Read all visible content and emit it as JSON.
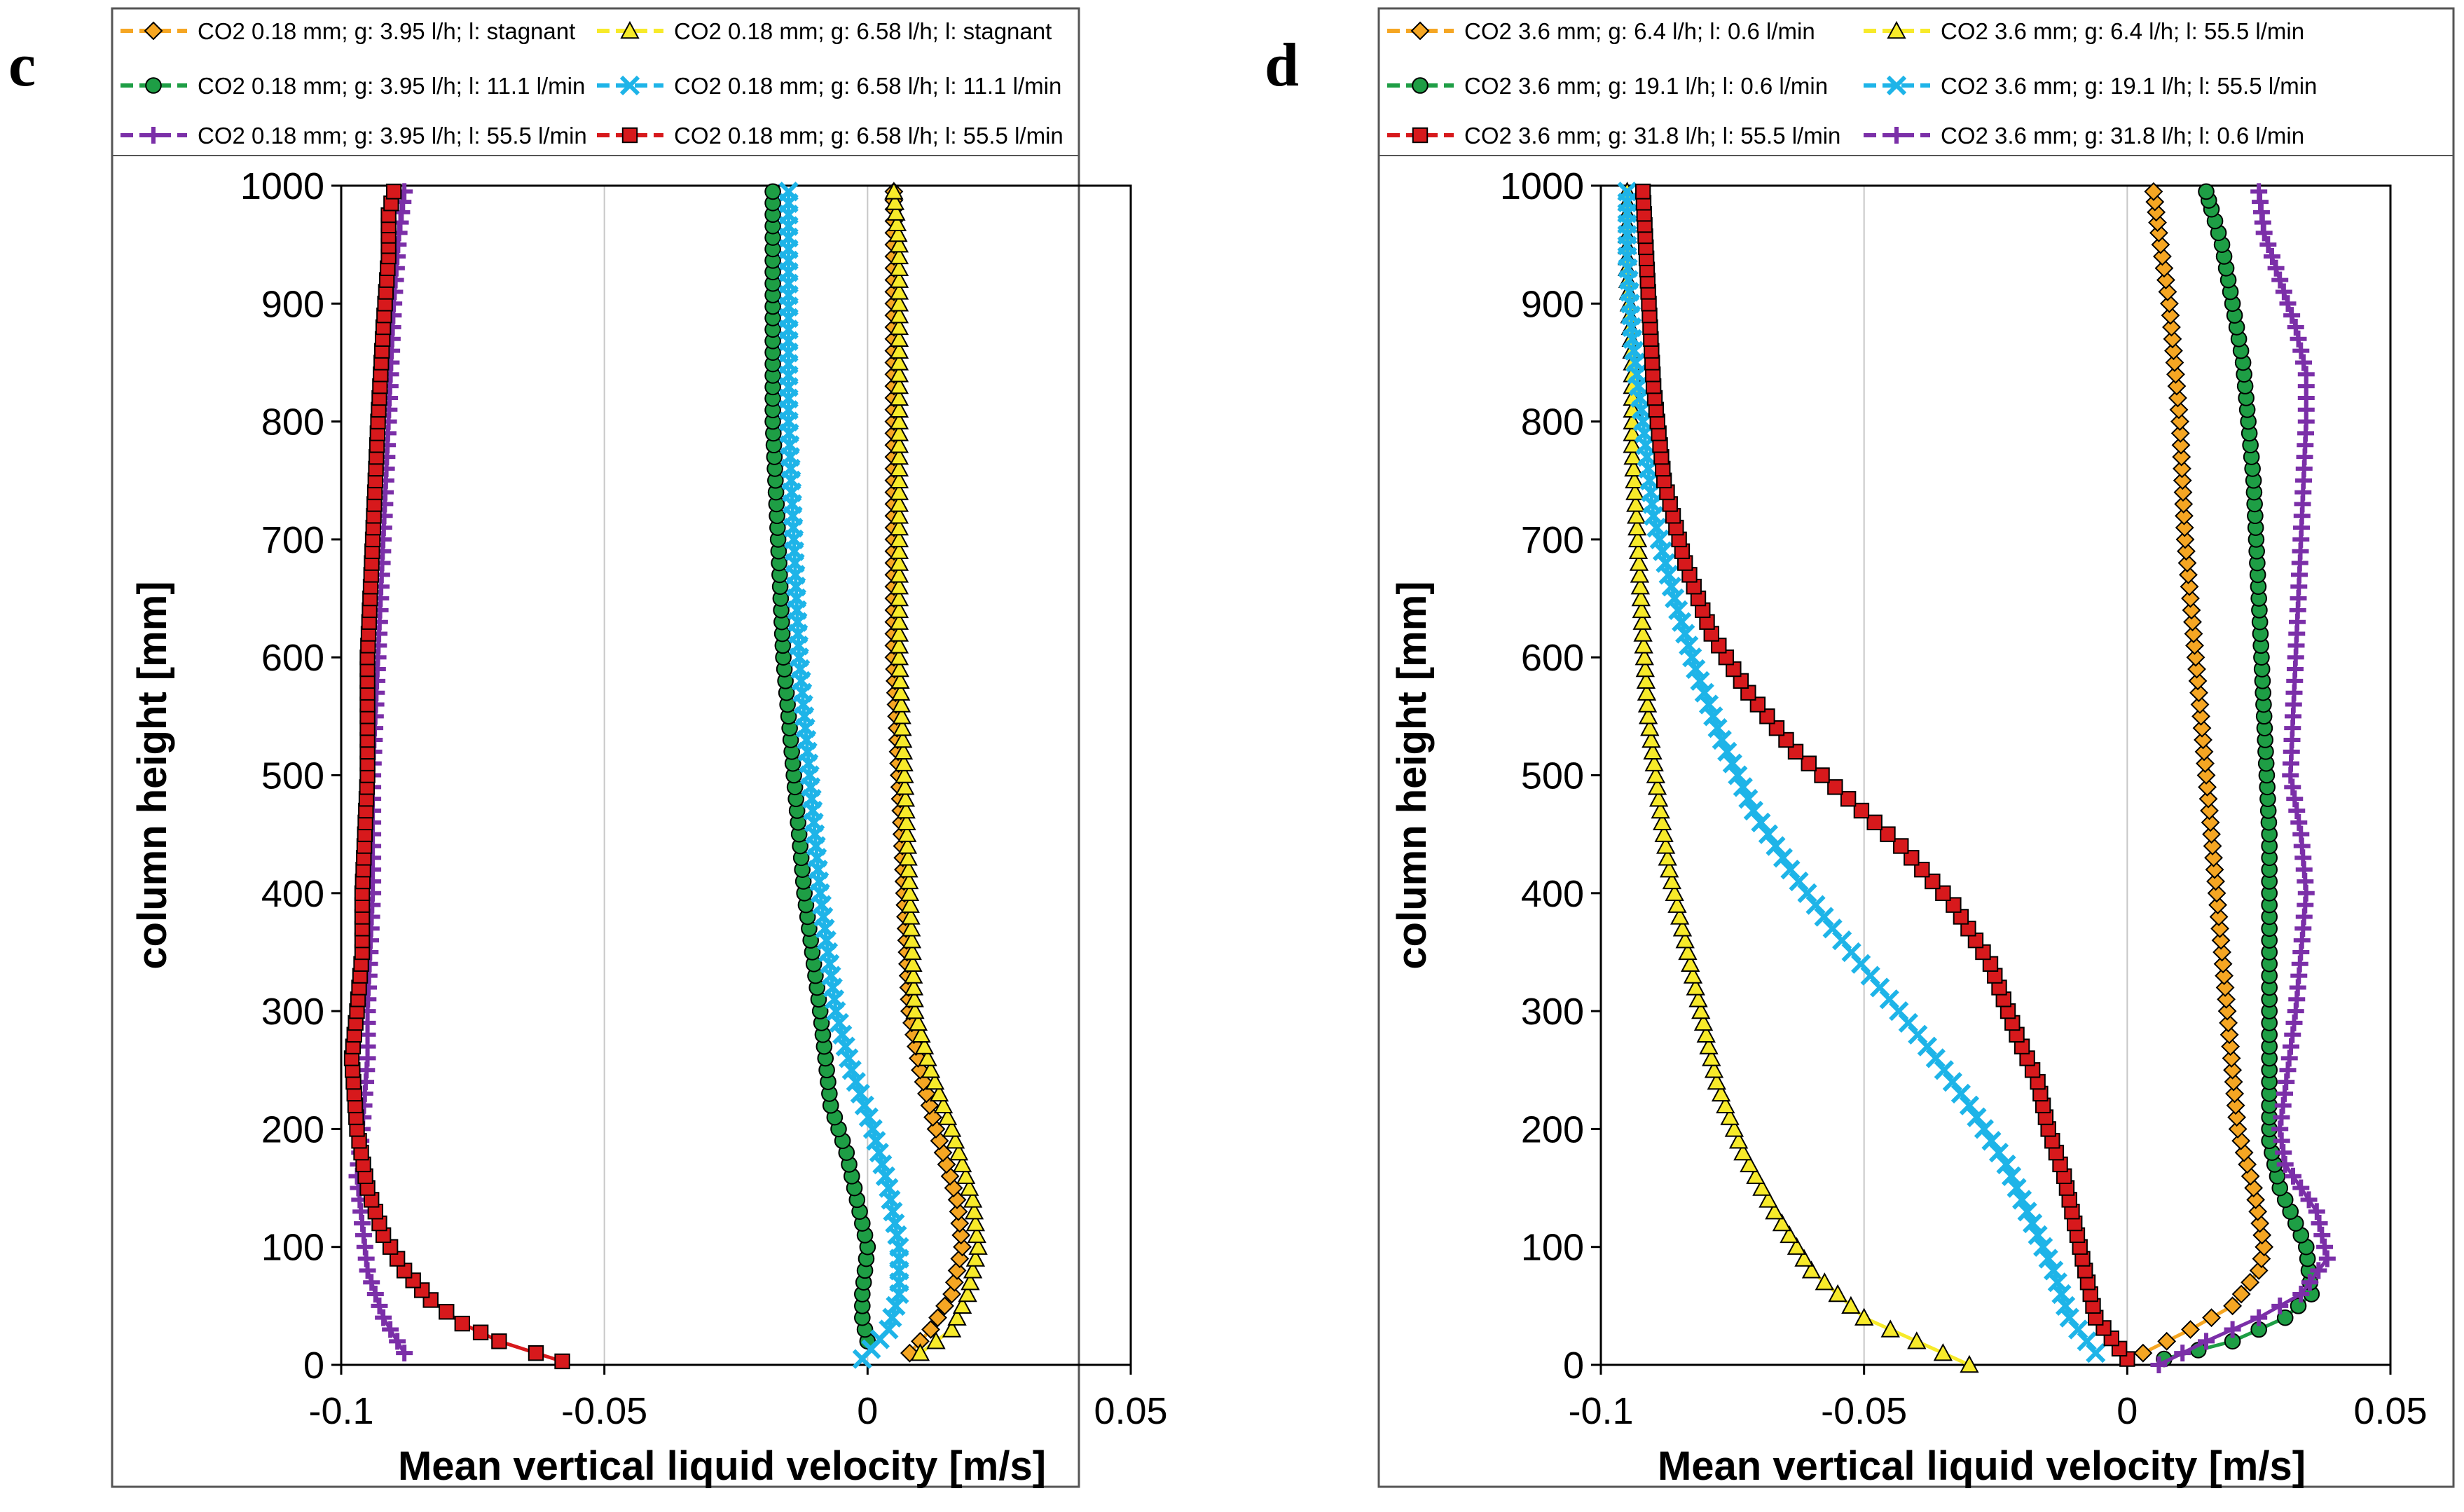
{
  "chart_data": [
    {
      "type": "line",
      "panel_label": "c",
      "xlabel": "Mean vertical liquid velocity  [m/s]",
      "ylabel": "column height [mm]",
      "xlim": [
        -0.1,
        0.05
      ],
      "ylim": [
        0,
        1000
      ],
      "xticks": [
        -0.1,
        -0.05,
        0,
        0.05
      ],
      "xtick_labels": [
        "-0.1",
        "-0.05",
        "0",
        "0.05"
      ],
      "yticks": [
        0,
        100,
        200,
        300,
        400,
        500,
        600,
        700,
        800,
        900,
        1000
      ],
      "ytick_labels": [
        "0",
        "100",
        "200",
        "300",
        "400",
        "500",
        "600",
        "700",
        "800",
        "900",
        "1000"
      ],
      "grid": "vertical",
      "legend_position": "top",
      "series": [
        {
          "name": "CO2 0.18 mm; g: 3.95 l/h; l: stagnant",
          "color": "#F5A623",
          "marker": "diamond",
          "x": [
            0.008,
            0.012,
            0.016,
            0.018,
            0.017,
            0.013,
            0.01,
            0.008,
            0.007,
            0.006,
            0.005,
            0.005,
            0.005,
            0.005,
            0.005,
            0.005,
            0.005
          ],
          "y": [
            10,
            30,
            60,
            100,
            140,
            200,
            250,
            300,
            400,
            500,
            600,
            700,
            800,
            900,
            950,
            980,
            995
          ]
        },
        {
          "name": "CO2 0.18 mm; g: 6.58 l/h; l: stagnant",
          "color": "#F7EA2A",
          "marker": "triangle",
          "x": [
            0.01,
            0.016,
            0.019,
            0.021,
            0.02,
            0.016,
            0.012,
            0.009,
            0.008,
            0.007,
            0.006,
            0.006,
            0.006,
            0.006,
            0.006,
            0.005
          ],
          "y": [
            10,
            30,
            60,
            100,
            140,
            200,
            250,
            300,
            400,
            500,
            600,
            700,
            800,
            900,
            950,
            995
          ]
        },
        {
          "name": "CO2 0.18 mm; g: 3.95 l/h; l: 11.1 l/min",
          "color": "#1E9E45",
          "marker": "circle",
          "x": [
            0.0,
            -0.001,
            -0.001,
            0.0,
            -0.002,
            -0.004,
            -0.007,
            -0.009,
            -0.012,
            -0.014,
            -0.016,
            -0.017,
            -0.018,
            -0.018
          ],
          "y": [
            20,
            40,
            60,
            100,
            140,
            180,
            220,
            300,
            400,
            500,
            600,
            700,
            800,
            995
          ]
        },
        {
          "name": "CO2 0.18 mm; g: 6.58 l/h; l: 11.1 l/min",
          "color": "#1EB4E8",
          "marker": "x",
          "x": [
            -0.001,
            0.004,
            0.006,
            0.006,
            0.004,
            0.001,
            -0.003,
            -0.006,
            -0.009,
            -0.011,
            -0.013,
            -0.014,
            -0.015,
            -0.015
          ],
          "y": [
            5,
            30,
            60,
            100,
            150,
            200,
            250,
            300,
            400,
            500,
            600,
            700,
            800,
            995
          ]
        },
        {
          "name": "CO2 0.18 mm; g: 3.95 l/h; l: 55.5 l/min",
          "color": "#7B2FA8",
          "marker": "plus",
          "x": [
            -0.088,
            -0.092,
            -0.095,
            -0.096,
            -0.097,
            -0.096,
            -0.095,
            -0.095,
            -0.094,
            -0.094,
            -0.093,
            -0.092,
            -0.091,
            -0.09,
            -0.089,
            -0.088
          ],
          "y": [
            10,
            40,
            80,
            120,
            160,
            200,
            260,
            300,
            400,
            500,
            600,
            700,
            800,
            900,
            960,
            995
          ]
        },
        {
          "name": "CO2 0.18 mm; g: 6.58 l/h; l: 55.5 l/min",
          "color": "#D7191C",
          "marker": "square",
          "x": [
            -0.058,
            -0.063,
            -0.07,
            -0.077,
            -0.083,
            -0.088,
            -0.092,
            -0.095,
            -0.097,
            -0.098,
            -0.097,
            -0.096,
            -0.096,
            -0.095,
            -0.095,
            -0.094,
            -0.093,
            -0.092,
            -0.091,
            -0.091,
            -0.09
          ],
          "y": [
            3,
            10,
            20,
            35,
            55,
            80,
            110,
            150,
            200,
            260,
            300,
            350,
            400,
            500,
            600,
            700,
            800,
            880,
            940,
            975,
            995
          ]
        }
      ]
    },
    {
      "type": "line",
      "panel_label": "d",
      "xlabel": "Mean vertical liquid velocity  [m/s]",
      "ylabel": "column height [mm]",
      "xlim": [
        -0.1,
        0.05
      ],
      "ylim": [
        0,
        1000
      ],
      "xticks": [
        -0.1,
        -0.05,
        0,
        0.05
      ],
      "xtick_labels": [
        "-0.1",
        "-0.05",
        "0",
        "0.05"
      ],
      "yticks": [
        0,
        100,
        200,
        300,
        400,
        500,
        600,
        700,
        800,
        900,
        1000
      ],
      "ytick_labels": [
        "0",
        "100",
        "200",
        "300",
        "400",
        "500",
        "600",
        "700",
        "800",
        "900",
        "1000"
      ],
      "grid": "vertical",
      "legend_position": "top",
      "series": [
        {
          "name": "CO2 3.6 mm; g: 6.4 l/h; l: 0.6 l/min",
          "color": "#F5A623",
          "marker": "diamond",
          "x": [
            0.003,
            0.012,
            0.02,
            0.025,
            0.026,
            0.024,
            0.021,
            0.019,
            0.017,
            0.015,
            0.013,
            0.011,
            0.01,
            0.008,
            0.006,
            0.005
          ],
          "y": [
            10,
            30,
            50,
            80,
            100,
            150,
            200,
            300,
            400,
            500,
            600,
            700,
            800,
            900,
            960,
            995
          ]
        },
        {
          "name": "CO2 3.6 mm; g: 6.4 l/h; l: 55.5 l/min",
          "color": "#F7EA2A",
          "marker": "triangle",
          "x": [
            -0.03,
            -0.04,
            -0.05,
            -0.06,
            -0.067,
            -0.073,
            -0.078,
            -0.081,
            -0.084,
            -0.087,
            -0.089,
            -0.091,
            -0.092,
            -0.093,
            -0.094,
            -0.094,
            -0.095,
            -0.095
          ],
          "y": [
            0,
            20,
            40,
            80,
            130,
            180,
            240,
            300,
            360,
            420,
            480,
            550,
            620,
            700,
            780,
            850,
            930,
            995
          ]
        },
        {
          "name": "CO2 3.6 mm; g: 19.1 l/h; l: 0.6 l/min",
          "color": "#1E9E45",
          "marker": "circle",
          "x": [
            0.007,
            0.02,
            0.03,
            0.035,
            0.034,
            0.029,
            0.027,
            0.027,
            0.027,
            0.027,
            0.026,
            0.025,
            0.024,
            0.022,
            0.02,
            0.018,
            0.016,
            0.015
          ],
          "y": [
            5,
            20,
            40,
            60,
            100,
            150,
            190,
            250,
            350,
            450,
            550,
            650,
            750,
            850,
            900,
            950,
            980,
            995
          ]
        },
        {
          "name": "CO2 3.6 mm; g: 19.1 l/h; l: 55.5 l/min",
          "color": "#1EB4E8",
          "marker": "x",
          "x": [
            -0.006,
            -0.011,
            -0.014,
            -0.018,
            -0.023,
            -0.03,
            -0.038,
            -0.047,
            -0.056,
            -0.064,
            -0.071,
            -0.077,
            -0.082,
            -0.086,
            -0.09,
            -0.092,
            -0.094,
            -0.095,
            -0.095
          ],
          "y": [
            10,
            40,
            80,
            120,
            170,
            220,
            270,
            320,
            370,
            420,
            470,
            530,
            590,
            650,
            720,
            800,
            870,
            940,
            995
          ]
        },
        {
          "name": "CO2 3.6 mm; g: 31.8 l/h; l: 55.5 l/min",
          "color": "#D7191C",
          "marker": "square",
          "x": [
            0.0,
            -0.006,
            -0.008,
            -0.01,
            -0.012,
            -0.015,
            -0.017,
            -0.021,
            -0.026,
            -0.033,
            -0.043,
            -0.053,
            -0.063,
            -0.072,
            -0.079,
            -0.084,
            -0.088,
            -0.09,
            -0.091,
            -0.092
          ],
          "y": [
            5,
            40,
            80,
            120,
            160,
            200,
            240,
            280,
            340,
            390,
            440,
            480,
            520,
            570,
            620,
            680,
            750,
            830,
            910,
            995
          ]
        },
        {
          "name": "CO2 3.6 mm; g: 31.8 l/h; l: 0.6 l/min",
          "color": "#7B2FA8",
          "marker": "plus",
          "x": [
            0.006,
            0.015,
            0.025,
            0.033,
            0.038,
            0.036,
            0.03,
            0.029,
            0.032,
            0.034,
            0.033,
            0.031,
            0.032,
            0.033,
            0.034,
            0.034,
            0.032,
            0.029,
            0.026,
            0.025
          ],
          "y": [
            0,
            20,
            40,
            60,
            90,
            130,
            170,
            200,
            300,
            400,
            450,
            500,
            600,
            700,
            800,
            840,
            880,
            920,
            960,
            995
          ]
        }
      ]
    }
  ]
}
